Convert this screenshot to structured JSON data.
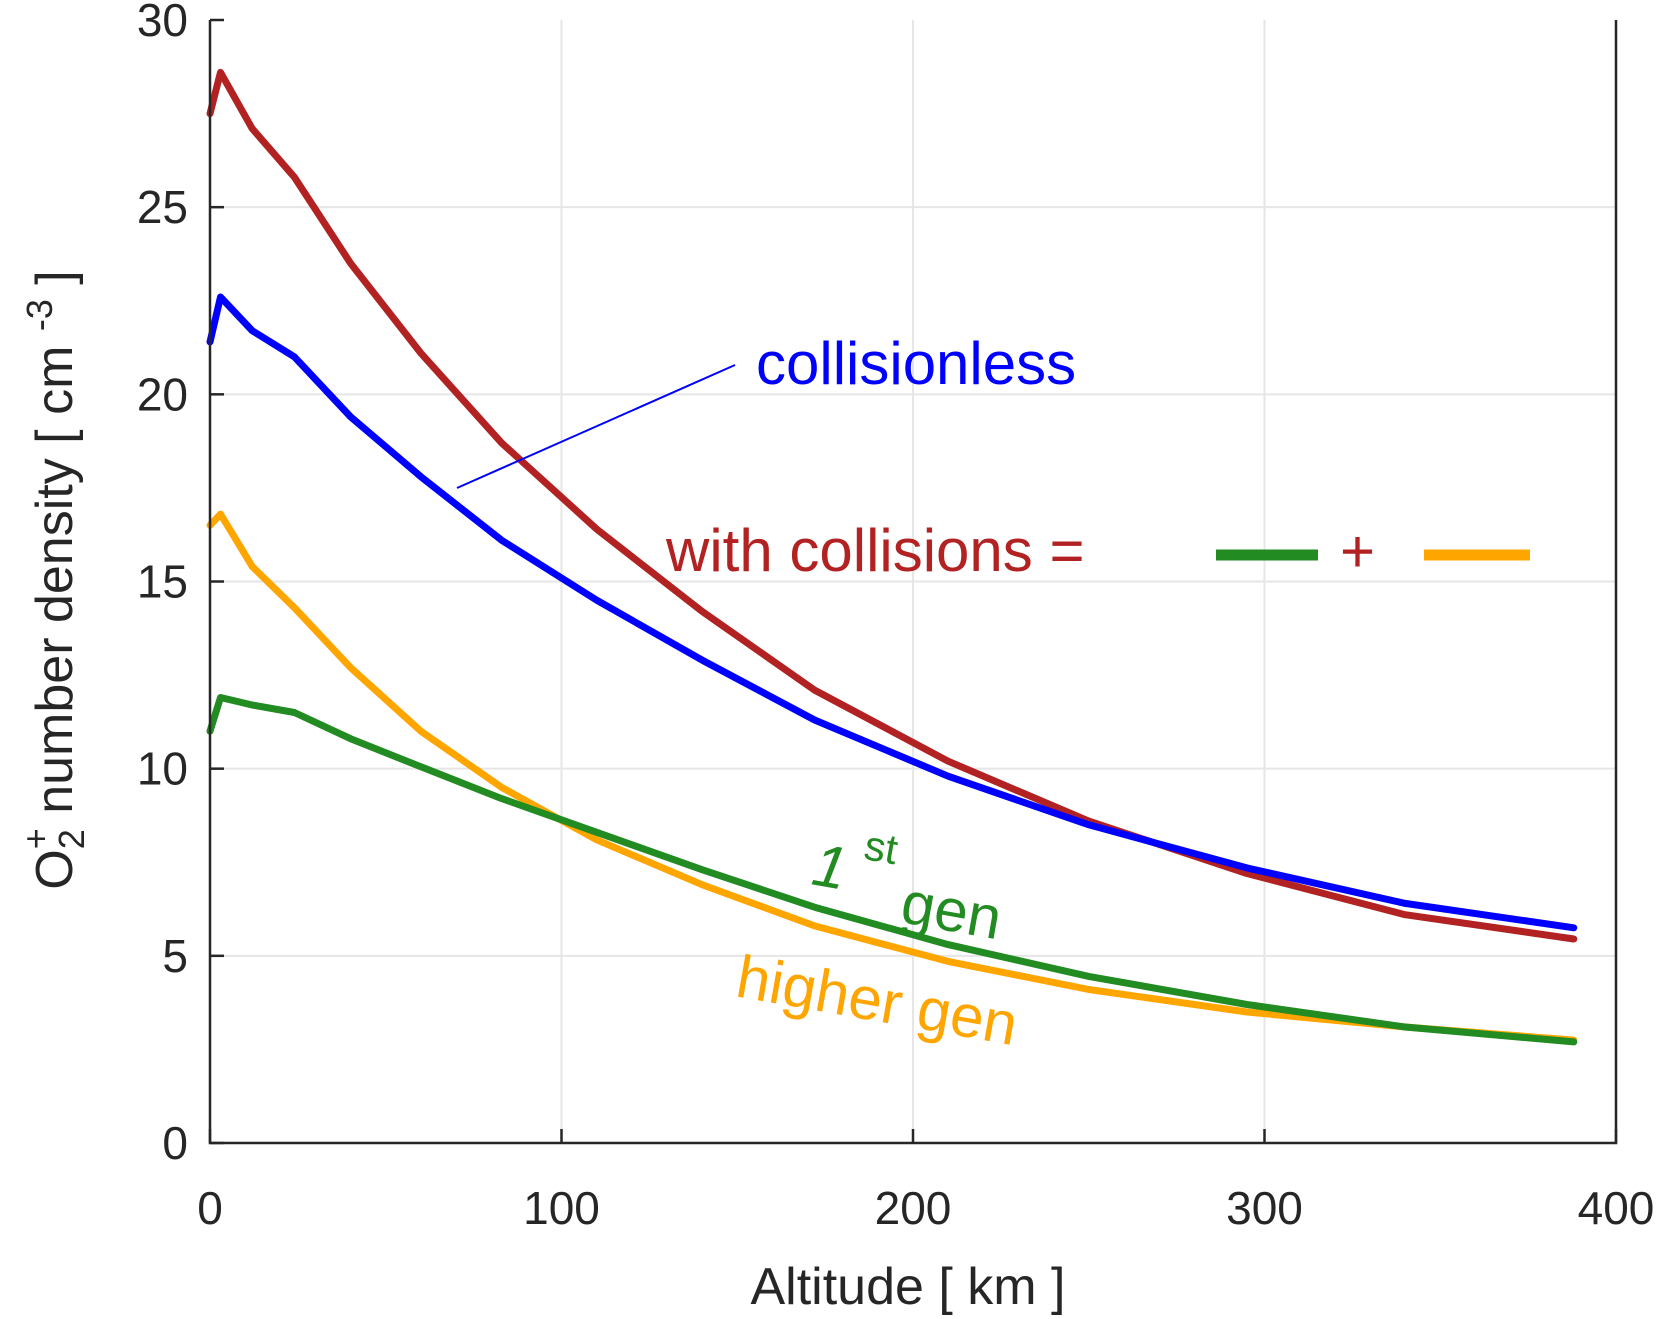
{
  "chart_data": {
    "type": "line",
    "title": "",
    "xlabel": "Altitude [ km ]",
    "ylabel_parts": {
      "O": "O",
      "sub": "2",
      "sup": "+",
      "rest": " number density [ cm ",
      "exp": "-3",
      "close": " ]"
    },
    "xlim": [
      0,
      400
    ],
    "ylim": [
      0,
      30
    ],
    "xticks": [
      0,
      100,
      200,
      300,
      400
    ],
    "yticks": [
      0,
      5,
      10,
      15,
      20,
      25,
      30
    ],
    "grid": true,
    "colors": {
      "collisionless": "#0000ff",
      "with_collisions": "#b22222",
      "first_gen": "#228b22",
      "higher_gen": "#ffa500",
      "axis": "#262626"
    },
    "series": [
      {
        "key": "with_collisions",
        "x": [
          0,
          3,
          12,
          24,
          40,
          60,
          83,
          110,
          140,
          172,
          210,
          250,
          295,
          340,
          388
        ],
        "y": [
          27.5,
          28.6,
          27.1,
          25.8,
          23.5,
          21.1,
          18.7,
          16.4,
          14.2,
          12.1,
          10.2,
          8.6,
          7.2,
          6.1,
          5.45
        ]
      },
      {
        "key": "collisionless",
        "x": [
          0,
          3,
          12,
          24,
          40,
          60,
          83,
          110,
          140,
          172,
          210,
          250,
          295,
          340,
          388
        ],
        "y": [
          21.4,
          22.6,
          21.7,
          21.0,
          19.4,
          17.8,
          16.1,
          14.5,
          12.9,
          11.3,
          9.8,
          8.5,
          7.35,
          6.4,
          5.75
        ]
      },
      {
        "key": "higher_gen",
        "x": [
          0,
          3,
          12,
          24,
          40,
          60,
          83,
          110,
          140,
          172,
          210,
          250,
          295,
          340,
          388
        ],
        "y": [
          16.5,
          16.8,
          15.4,
          14.3,
          12.7,
          11.0,
          9.5,
          8.1,
          6.9,
          5.8,
          4.85,
          4.1,
          3.5,
          3.1,
          2.75
        ]
      },
      {
        "key": "first_gen",
        "x": [
          0,
          3,
          12,
          24,
          40,
          60,
          83,
          110,
          140,
          172,
          210,
          250,
          295,
          340,
          388
        ],
        "y": [
          11.0,
          11.9,
          11.7,
          11.5,
          10.8,
          10.05,
          9.2,
          8.3,
          7.3,
          6.3,
          5.3,
          4.45,
          3.7,
          3.1,
          2.7
        ]
      }
    ],
    "annotations": {
      "collisionless": "collisionless",
      "with_collisions": "with collisions =",
      "plus": "+",
      "first_gen_num": "1",
      "first_gen_sup": "st",
      "first_gen_word": "gen",
      "higher_gen": "higher gen"
    }
  }
}
